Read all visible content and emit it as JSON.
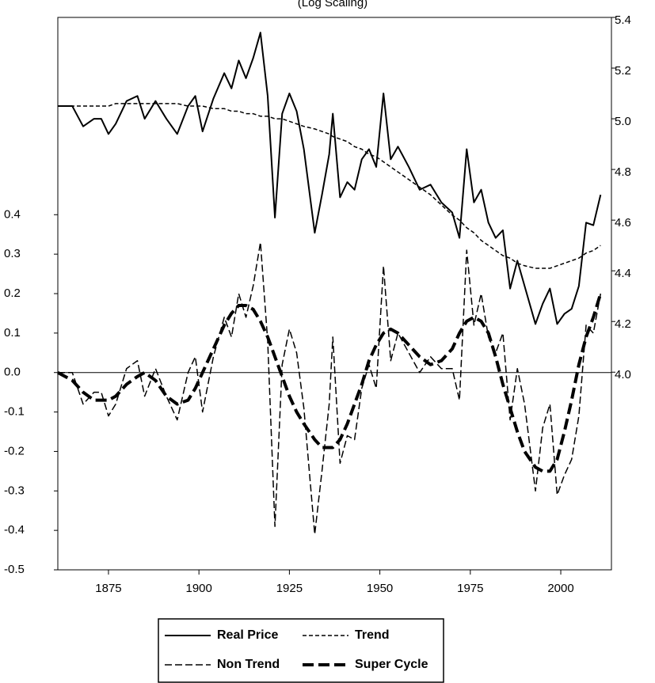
{
  "chart_data": {
    "type": "line",
    "title": "(Log Scaling)",
    "x": [
      1861,
      1865,
      1868,
      1871,
      1873,
      1875,
      1877,
      1880,
      1883,
      1885,
      1888,
      1891,
      1894,
      1897,
      1899,
      1901,
      1904,
      1907,
      1909,
      1911,
      1913,
      1915,
      1917,
      1919,
      1921,
      1923,
      1925,
      1927,
      1929,
      1932,
      1934,
      1936,
      1937,
      1939,
      1941,
      1943,
      1945,
      1947,
      1949,
      1951,
      1953,
      1955,
      1958,
      1961,
      1964,
      1967,
      1970,
      1972,
      1974,
      1976,
      1978,
      1980,
      1982,
      1984,
      1986,
      1988,
      1990,
      1993,
      1995,
      1997,
      1999,
      2001,
      2003,
      2005,
      2007,
      2009,
      2011
    ],
    "xlim": [
      1861,
      2014
    ],
    "xticks": [
      1875,
      1900,
      1925,
      1950,
      1975,
      2000
    ],
    "ylim": [
      -0.5,
      0.9
    ],
    "yticks": [
      -0.5,
      -0.4,
      -0.3,
      -0.2,
      -0.1,
      {
        "value": 0,
        "label": "0.0"
      },
      0.1,
      0.2,
      0.3,
      0.4
    ],
    "y2lim": [
      3.22,
      5.4
    ],
    "y2ticks": [
      {
        "value": 4,
        "label": "4.0"
      },
      4.2,
      4.4,
      4.6,
      4.8,
      {
        "value": 5,
        "label": "5.0"
      },
      5.2,
      5.4
    ],
    "zero_line": true,
    "series": [
      {
        "name": "Real Price",
        "color": "#000000",
        "axis": "y2",
        "dash": "none",
        "width": 2,
        "values": [
          5.05,
          5.05,
          4.97,
          5.0,
          5.0,
          4.94,
          4.98,
          5.07,
          5.09,
          5.0,
          5.07,
          5.0,
          4.94,
          5.05,
          5.09,
          4.95,
          5.08,
          5.18,
          5.12,
          5.23,
          5.16,
          5.24,
          5.34,
          5.09,
          4.61,
          5.02,
          5.1,
          5.03,
          4.88,
          4.55,
          4.7,
          4.86,
          5.02,
          4.69,
          4.75,
          4.72,
          4.84,
          4.88,
          4.81,
          5.1,
          4.84,
          4.89,
          4.81,
          4.72,
          4.74,
          4.67,
          4.63,
          4.53,
          4.88,
          4.67,
          4.72,
          4.59,
          4.53,
          4.56,
          4.33,
          4.44,
          4.34,
          4.19,
          4.27,
          4.33,
          4.19,
          4.23,
          4.25,
          4.34,
          4.59,
          4.58,
          4.7
        ]
      },
      {
        "name": "Trend",
        "color": "#000000",
        "axis": "y2",
        "dash": "5 3",
        "width": 1.5,
        "values": [
          5.05,
          5.05,
          5.05,
          5.05,
          5.05,
          5.05,
          5.06,
          5.06,
          5.06,
          5.06,
          5.06,
          5.06,
          5.06,
          5.05,
          5.05,
          5.05,
          5.04,
          5.04,
          5.03,
          5.03,
          5.02,
          5.02,
          5.01,
          5.01,
          5.0,
          5.0,
          4.99,
          4.98,
          4.97,
          4.96,
          4.95,
          4.94,
          4.93,
          4.92,
          4.91,
          4.89,
          4.88,
          4.86,
          4.85,
          4.83,
          4.81,
          4.79,
          4.76,
          4.73,
          4.7,
          4.66,
          4.62,
          4.6,
          4.57,
          4.55,
          4.52,
          4.5,
          4.48,
          4.46,
          4.45,
          4.43,
          4.42,
          4.41,
          4.41,
          4.41,
          4.42,
          4.43,
          4.44,
          4.45,
          4.47,
          4.48,
          4.5
        ]
      },
      {
        "name": "Non Trend",
        "color": "#000000",
        "axis": "y",
        "dash": "9 4",
        "width": 1.5,
        "values": [
          0.0,
          0.0,
          -0.08,
          -0.05,
          -0.05,
          -0.11,
          -0.08,
          0.01,
          0.03,
          -0.06,
          0.01,
          -0.06,
          -0.12,
          0.0,
          0.04,
          -0.1,
          0.04,
          0.14,
          0.09,
          0.2,
          0.14,
          0.22,
          0.33,
          0.08,
          -0.39,
          0.02,
          0.11,
          0.05,
          -0.09,
          -0.41,
          -0.25,
          -0.08,
          0.09,
          -0.23,
          -0.16,
          -0.17,
          -0.04,
          0.02,
          -0.04,
          0.27,
          0.03,
          0.1,
          0.05,
          0.0,
          0.04,
          0.01,
          0.01,
          -0.07,
          0.31,
          0.12,
          0.2,
          0.09,
          0.05,
          0.1,
          -0.12,
          0.01,
          -0.08,
          -0.3,
          -0.14,
          -0.08,
          -0.31,
          -0.26,
          -0.22,
          -0.11,
          0.12,
          0.1,
          0.2
        ]
      },
      {
        "name": "Super Cycle",
        "color": "#000000",
        "axis": "y",
        "dash": "14 6",
        "width": 4,
        "values": [
          0.0,
          -0.02,
          -0.05,
          -0.07,
          -0.07,
          -0.07,
          -0.06,
          -0.03,
          -0.01,
          0.0,
          -0.02,
          -0.06,
          -0.08,
          -0.07,
          -0.04,
          0.0,
          0.06,
          0.12,
          0.15,
          0.17,
          0.17,
          0.16,
          0.13,
          0.09,
          0.04,
          -0.01,
          -0.06,
          -0.1,
          -0.13,
          -0.17,
          -0.19,
          -0.19,
          -0.19,
          -0.17,
          -0.13,
          -0.08,
          -0.03,
          0.03,
          0.07,
          0.1,
          0.11,
          0.1,
          0.07,
          0.04,
          0.02,
          0.03,
          0.06,
          0.1,
          0.13,
          0.14,
          0.13,
          0.1,
          0.04,
          -0.03,
          -0.09,
          -0.15,
          -0.2,
          -0.24,
          -0.25,
          -0.25,
          -0.22,
          -0.15,
          -0.07,
          0.02,
          0.09,
          0.14,
          0.2
        ]
      }
    ]
  }
}
